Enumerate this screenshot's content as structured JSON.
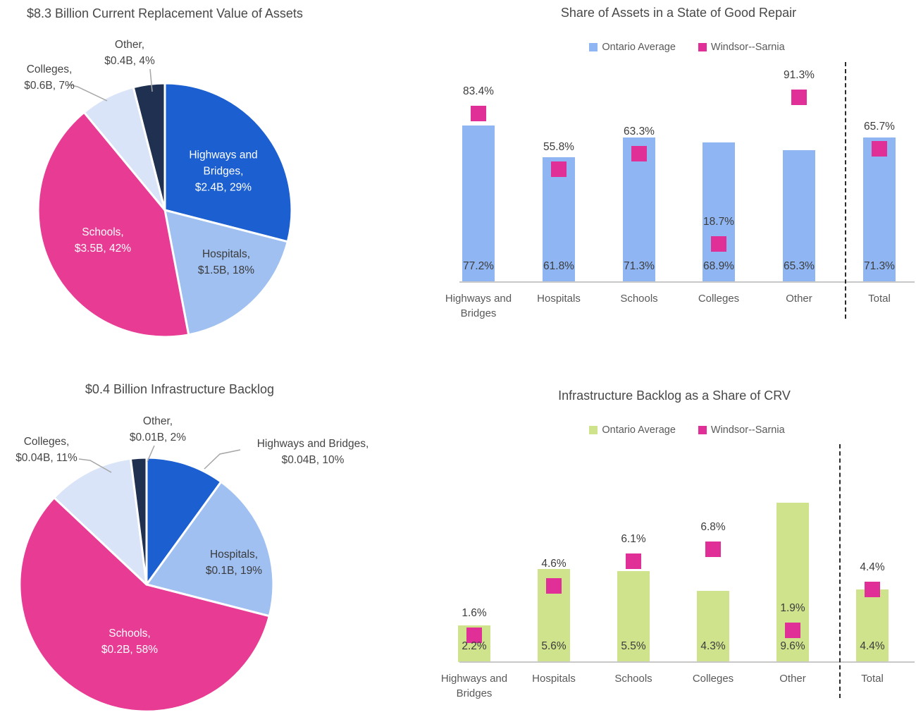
{
  "page": {
    "background": "#FFFFFF"
  },
  "chart_data": [
    {
      "id": "crv-pie",
      "type": "pie",
      "title": "$8.3 Billion Current Replacement Value of Assets",
      "legend_position": "none",
      "slices": [
        {
          "label": "Highways and Bridges",
          "value": "$2.4B",
          "pct": 29,
          "color": "#1B5FD0",
          "label_text": "Highways and\nBridges,\n$2.4B, 29%",
          "placement": "inside"
        },
        {
          "label": "Hospitals",
          "value": "$1.5B",
          "pct": 18,
          "color": "#A0C0F2",
          "label_text": "Hospitals,\n$1.5B, 18%",
          "placement": "inside"
        },
        {
          "label": "Schools",
          "value": "$3.5B",
          "pct": 42,
          "color": "#E83B93",
          "label_text": "Schools,\n$3.5B, 42%",
          "placement": "inside"
        },
        {
          "label": "Colleges",
          "value": "$0.6B",
          "pct": 7,
          "color": "#D9E4F8",
          "label_text": "Colleges,\n$0.6B, 7%",
          "placement": "outside"
        },
        {
          "label": "Other",
          "value": "$0.4B",
          "pct": 4,
          "color": "#1F3050",
          "label_text": "Other,\n$0.4B, 4%",
          "placement": "outside"
        }
      ]
    },
    {
      "id": "good-repair-bars",
      "type": "bar",
      "title": "Share of Assets in a State of Good Repair",
      "legend_position": "top",
      "categories": [
        "Highways and\nBridges",
        "Hospitals",
        "Schools",
        "Colleges",
        "Other",
        "Total"
      ],
      "separator_after_category": "Other",
      "value_suffix": "%",
      "ylim": [
        0,
        110
      ],
      "series": [
        {
          "name": "Ontario Average",
          "color": "#8FB6F2",
          "marker": "bar",
          "values": [
            77.2,
            61.8,
            71.3,
            68.9,
            65.3,
            71.3
          ]
        },
        {
          "name": "Windsor--Sarnia",
          "color": "#E02F96",
          "marker": "square",
          "values": [
            83.4,
            55.8,
            63.3,
            18.7,
            91.3,
            65.7
          ]
        }
      ]
    },
    {
      "id": "backlog-pie",
      "type": "pie",
      "title": "$0.4 Billion Infrastructure Backlog",
      "legend_position": "none",
      "slices": [
        {
          "label": "Highways and Bridges",
          "value": "$0.04B",
          "pct": 10,
          "color": "#1B5FD0",
          "label_text": "Highways and Bridges,\n$0.04B, 10%",
          "placement": "outside"
        },
        {
          "label": "Hospitals",
          "value": "$0.1B",
          "pct": 19,
          "color": "#A0C0F2",
          "label_text": "Hospitals,\n$0.1B, 19%",
          "placement": "inside"
        },
        {
          "label": "Schools",
          "value": "$0.2B",
          "pct": 58,
          "color": "#E83B93",
          "label_text": "Schools,\n$0.2B, 58%",
          "placement": "inside"
        },
        {
          "label": "Colleges",
          "value": "$0.04B",
          "pct": 11,
          "color": "#D9E4F8",
          "label_text": "Colleges,\n$0.04B, 11%",
          "placement": "outside"
        },
        {
          "label": "Other",
          "value": "$0.01B",
          "pct": 2,
          "color": "#1F3050",
          "label_text": "Other,\n$0.01B, 2%",
          "placement": "outside"
        }
      ]
    },
    {
      "id": "backlog-crv-bars",
      "type": "bar",
      "title": "Infrastructure Backlog as a Share of CRV",
      "legend_position": "top",
      "categories": [
        "Highways and\nBridges",
        "Hospitals",
        "Schools",
        "Colleges",
        "Other",
        "Total"
      ],
      "separator_after_category": "Other",
      "value_suffix": "%",
      "ylim": [
        0,
        13
      ],
      "series": [
        {
          "name": "Ontario Average",
          "color": "#CFE28C",
          "marker": "bar",
          "values": [
            2.2,
            5.6,
            5.5,
            4.3,
            9.6,
            4.4
          ]
        },
        {
          "name": "Windsor--Sarnia",
          "color": "#E02F96",
          "marker": "square",
          "values": [
            1.6,
            4.6,
            6.1,
            6.8,
            1.9,
            4.4
          ]
        }
      ]
    }
  ]
}
